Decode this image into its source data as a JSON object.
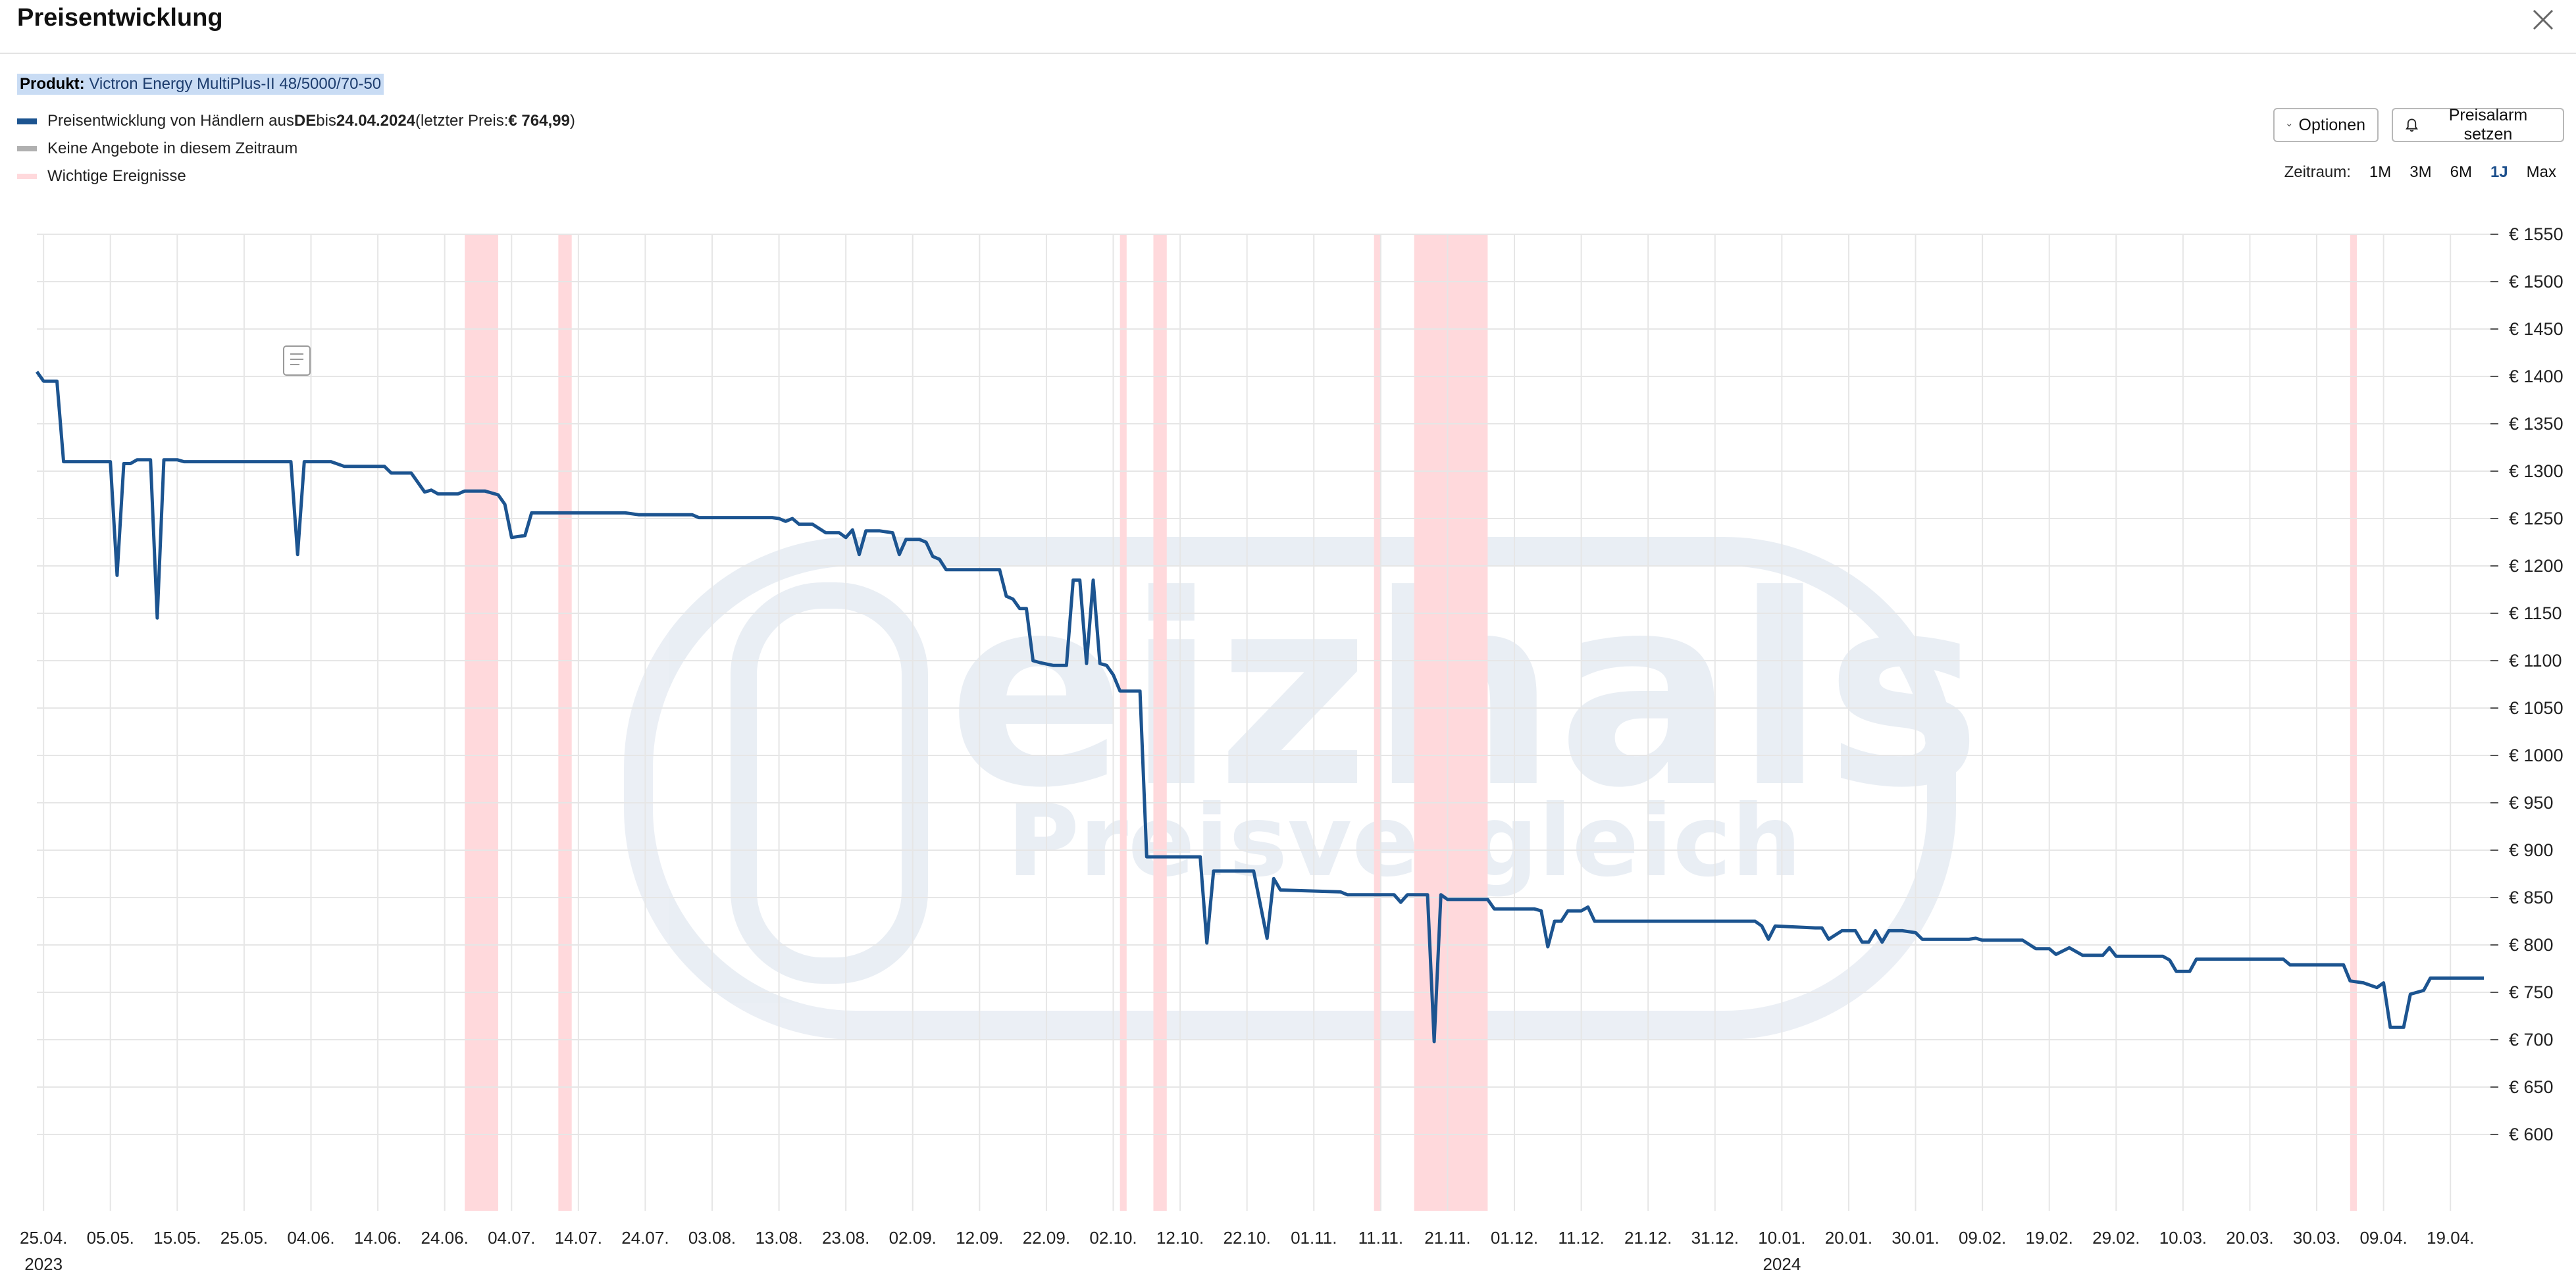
{
  "dialog": {
    "title": "Preisentwicklung",
    "product_label": "Produkt:",
    "product_name": "Victron Energy MultiPlus-II 48/5000/70-50"
  },
  "legend": {
    "price_prefix": "Preisentwicklung von Händlern aus ",
    "price_country": "DE",
    "price_mid": " bis ",
    "price_date": "24.04.2024",
    "price_last_prefix": " (letzter Preis: ",
    "price_last_value": "€ 764,99",
    "price_last_suffix": ")",
    "no_offers": "Keine Angebote in diesem Zeitraum",
    "events": "Wichtige Ereignisse"
  },
  "toolbar": {
    "options_label": "Optionen",
    "alarm_label": "Preisalarm setzen"
  },
  "zeitraum": {
    "label": "Zeitraum:",
    "options": [
      "1M",
      "3M",
      "6M",
      "1J",
      "Max"
    ],
    "selected": "1J"
  },
  "watermark": {
    "brand": "eizhals",
    "sub": "Preisvergleich"
  },
  "colors": {
    "line": "#1c5490",
    "event": "#ffd9dc",
    "no_offer": "#b0b0b0",
    "grid": "#e6e6e6",
    "accent": "#1c4f8c"
  },
  "chart_data": {
    "type": "line",
    "ylim": [
      550,
      1550
    ],
    "y_ticks": [
      600,
      650,
      700,
      750,
      800,
      850,
      900,
      950,
      1000,
      1050,
      1100,
      1150,
      1200,
      1250,
      1300,
      1350,
      1400,
      1450,
      1500,
      1550
    ],
    "y_tick_prefix": "€ ",
    "x_start": "2023-04-24",
    "x_end": "2024-04-24",
    "x_ticks": [
      {
        "date": "2023-04-25",
        "label": "25.04.",
        "year": "2023"
      },
      {
        "date": "2023-05-05",
        "label": "05.05."
      },
      {
        "date": "2023-05-15",
        "label": "15.05."
      },
      {
        "date": "2023-05-25",
        "label": "25.05."
      },
      {
        "date": "2023-06-04",
        "label": "04.06."
      },
      {
        "date": "2023-06-14",
        "label": "14.06."
      },
      {
        "date": "2023-06-24",
        "label": "24.06."
      },
      {
        "date": "2023-07-04",
        "label": "04.07."
      },
      {
        "date": "2023-07-14",
        "label": "14.07."
      },
      {
        "date": "2023-07-24",
        "label": "24.07."
      },
      {
        "date": "2023-08-03",
        "label": "03.08."
      },
      {
        "date": "2023-08-13",
        "label": "13.08."
      },
      {
        "date": "2023-08-23",
        "label": "23.08."
      },
      {
        "date": "2023-09-02",
        "label": "02.09."
      },
      {
        "date": "2023-09-12",
        "label": "12.09."
      },
      {
        "date": "2023-09-22",
        "label": "22.09."
      },
      {
        "date": "2023-10-02",
        "label": "02.10."
      },
      {
        "date": "2023-10-12",
        "label": "12.10."
      },
      {
        "date": "2023-10-22",
        "label": "22.10."
      },
      {
        "date": "2023-11-01",
        "label": "01.11."
      },
      {
        "date": "2023-11-11",
        "label": "11.11."
      },
      {
        "date": "2023-11-21",
        "label": "21.11."
      },
      {
        "date": "2023-12-01",
        "label": "01.12."
      },
      {
        "date": "2023-12-11",
        "label": "11.12."
      },
      {
        "date": "2023-12-21",
        "label": "21.12."
      },
      {
        "date": "2023-12-31",
        "label": "31.12."
      },
      {
        "date": "2024-01-10",
        "label": "10.01.",
        "year": "2024"
      },
      {
        "date": "2024-01-20",
        "label": "20.01."
      },
      {
        "date": "2024-01-30",
        "label": "30.01."
      },
      {
        "date": "2024-02-09",
        "label": "09.02."
      },
      {
        "date": "2024-02-19",
        "label": "19.02."
      },
      {
        "date": "2024-02-29",
        "label": "29.02."
      },
      {
        "date": "2024-03-10",
        "label": "10.03."
      },
      {
        "date": "2024-03-20",
        "label": "20.03."
      },
      {
        "date": "2024-03-30",
        "label": "30.03."
      },
      {
        "date": "2024-04-09",
        "label": "09.04."
      },
      {
        "date": "2024-04-19",
        "label": "19.04."
      }
    ],
    "events": [
      {
        "start": "2023-06-27",
        "end": "2023-07-02"
      },
      {
        "start": "2023-07-11",
        "end": "2023-07-13"
      },
      {
        "start": "2023-10-03",
        "end": "2023-10-04"
      },
      {
        "start": "2023-10-08",
        "end": "2023-10-10"
      },
      {
        "start": "2023-11-10",
        "end": "2023-11-11"
      },
      {
        "start": "2023-11-16",
        "end": "2023-11-27"
      },
      {
        "start": "2024-04-04",
        "end": "2024-04-05"
      }
    ],
    "series": [
      {
        "points": [
          [
            "2023-04-24",
            1405
          ],
          [
            "2023-04-25",
            1395
          ],
          [
            "2023-04-27",
            1395
          ],
          [
            "2023-04-28",
            1310
          ],
          [
            "2023-05-05",
            1310
          ],
          [
            "2023-05-06",
            1190
          ],
          [
            "2023-05-07",
            1308
          ],
          [
            "2023-05-08",
            1308
          ],
          [
            "2023-05-09",
            1312
          ],
          [
            "2023-05-11",
            1312
          ],
          [
            "2023-05-12",
            1145
          ],
          [
            "2023-05-13",
            1312
          ],
          [
            "2023-05-15",
            1312
          ],
          [
            "2023-05-16",
            1310
          ],
          [
            "2023-06-01",
            1310
          ],
          [
            "2023-06-02",
            1212
          ],
          [
            "2023-06-03",
            1310
          ],
          [
            "2023-06-07",
            1310
          ],
          [
            "2023-06-09",
            1305
          ],
          [
            "2023-06-15",
            1305
          ],
          [
            "2023-06-16",
            1298
          ],
          [
            "2023-06-19",
            1298
          ],
          [
            "2023-06-21",
            1278
          ],
          [
            "2023-06-22",
            1280
          ],
          [
            "2023-06-23",
            1276
          ],
          [
            "2023-06-26",
            1276
          ],
          [
            "2023-06-27",
            1279
          ],
          [
            "2023-06-30",
            1279
          ],
          [
            "2023-07-02",
            1275
          ],
          [
            "2023-07-03",
            1265
          ],
          [
            "2023-07-04",
            1230
          ],
          [
            "2023-07-06",
            1232
          ],
          [
            "2023-07-07",
            1256
          ],
          [
            "2023-07-21",
            1256
          ],
          [
            "2023-07-23",
            1254
          ],
          [
            "2023-07-31",
            1254
          ],
          [
            "2023-08-01",
            1251
          ],
          [
            "2023-08-12",
            1251
          ],
          [
            "2023-08-13",
            1250
          ],
          [
            "2023-08-14",
            1247
          ],
          [
            "2023-08-15",
            1250
          ],
          [
            "2023-08-16",
            1244
          ],
          [
            "2023-08-18",
            1244
          ],
          [
            "2023-08-20",
            1235
          ],
          [
            "2023-08-22",
            1235
          ],
          [
            "2023-08-23",
            1230
          ],
          [
            "2023-08-24",
            1238
          ],
          [
            "2023-08-25",
            1212
          ],
          [
            "2023-08-26",
            1237
          ],
          [
            "2023-08-28",
            1237
          ],
          [
            "2023-08-30",
            1235
          ],
          [
            "2023-08-31",
            1212
          ],
          [
            "2023-09-01",
            1228
          ],
          [
            "2023-09-03",
            1228
          ],
          [
            "2023-09-04",
            1225
          ],
          [
            "2023-09-05",
            1210
          ],
          [
            "2023-09-06",
            1207
          ],
          [
            "2023-09-07",
            1196
          ],
          [
            "2023-09-15",
            1196
          ],
          [
            "2023-09-16",
            1168
          ],
          [
            "2023-09-17",
            1165
          ],
          [
            "2023-09-18",
            1155
          ],
          [
            "2023-09-19",
            1155
          ],
          [
            "2023-09-20",
            1100
          ],
          [
            "2023-09-21",
            1098
          ],
          [
            "2023-09-23",
            1095
          ],
          [
            "2023-09-25",
            1095
          ],
          [
            "2023-09-26",
            1185
          ],
          [
            "2023-09-27",
            1185
          ],
          [
            "2023-09-28",
            1097
          ],
          [
            "2023-09-29",
            1185
          ],
          [
            "2023-09-30",
            1097
          ],
          [
            "2023-10-01",
            1095
          ],
          [
            "2023-10-02",
            1085
          ],
          [
            "2023-10-03",
            1068
          ],
          [
            "2023-10-06",
            1068
          ],
          [
            "2023-10-07",
            893
          ],
          [
            "2023-10-15",
            893
          ],
          [
            "2023-10-16",
            802
          ],
          [
            "2023-10-17",
            878
          ],
          [
            "2023-10-23",
            878
          ],
          [
            "2023-10-25",
            807
          ],
          [
            "2023-10-26",
            870
          ],
          [
            "2023-10-27",
            858
          ],
          [
            "2023-11-05",
            856
          ],
          [
            "2023-11-06",
            853
          ],
          [
            "2023-11-13",
            853
          ],
          [
            "2023-11-14",
            845
          ],
          [
            "2023-11-15",
            853
          ],
          [
            "2023-11-18",
            853
          ],
          [
            "2023-11-19",
            698
          ],
          [
            "2023-11-20",
            853
          ],
          [
            "2023-11-21",
            848
          ],
          [
            "2023-11-27",
            848
          ],
          [
            "2023-11-28",
            838
          ],
          [
            "2023-12-04",
            838
          ],
          [
            "2023-12-05",
            836
          ],
          [
            "2023-12-06",
            798
          ],
          [
            "2023-12-07",
            825
          ],
          [
            "2023-12-08",
            825
          ],
          [
            "2023-12-09",
            836
          ],
          [
            "2023-12-11",
            836
          ],
          [
            "2023-12-12",
            840
          ],
          [
            "2023-12-13",
            825
          ],
          [
            "2024-01-06",
            825
          ],
          [
            "2024-01-07",
            820
          ],
          [
            "2024-01-08",
            806
          ],
          [
            "2024-01-09",
            820
          ],
          [
            "2024-01-15",
            818
          ],
          [
            "2024-01-16",
            818
          ],
          [
            "2024-01-17",
            806
          ],
          [
            "2024-01-19",
            815
          ],
          [
            "2024-01-21",
            815
          ],
          [
            "2024-01-22",
            803
          ],
          [
            "2024-01-23",
            803
          ],
          [
            "2024-01-24",
            815
          ],
          [
            "2024-01-25",
            803
          ],
          [
            "2024-01-26",
            815
          ],
          [
            "2024-01-28",
            815
          ],
          [
            "2024-01-30",
            813
          ],
          [
            "2024-01-31",
            806
          ],
          [
            "2024-02-07",
            806
          ],
          [
            "2024-02-08",
            807
          ],
          [
            "2024-02-09",
            805
          ],
          [
            "2024-02-15",
            805
          ],
          [
            "2024-02-17",
            796
          ],
          [
            "2024-02-19",
            796
          ],
          [
            "2024-02-20",
            790
          ],
          [
            "2024-02-22",
            797
          ],
          [
            "2024-02-24",
            789
          ],
          [
            "2024-02-27",
            789
          ],
          [
            "2024-02-28",
            797
          ],
          [
            "2024-02-29",
            788
          ],
          [
            "2024-03-07",
            788
          ],
          [
            "2024-03-08",
            784
          ],
          [
            "2024-03-09",
            772
          ],
          [
            "2024-03-11",
            772
          ],
          [
            "2024-03-12",
            785
          ],
          [
            "2024-03-25",
            785
          ],
          [
            "2024-03-26",
            779
          ],
          [
            "2024-04-03",
            779
          ],
          [
            "2024-04-04",
            762
          ],
          [
            "2024-04-06",
            760
          ],
          [
            "2024-04-08",
            755
          ],
          [
            "2024-04-09",
            760
          ],
          [
            "2024-04-10",
            713
          ],
          [
            "2024-04-12",
            713
          ],
          [
            "2024-04-13",
            748
          ],
          [
            "2024-04-15",
            752
          ],
          [
            "2024-04-16",
            765
          ],
          [
            "2024-04-24",
            765
          ]
        ]
      }
    ]
  }
}
